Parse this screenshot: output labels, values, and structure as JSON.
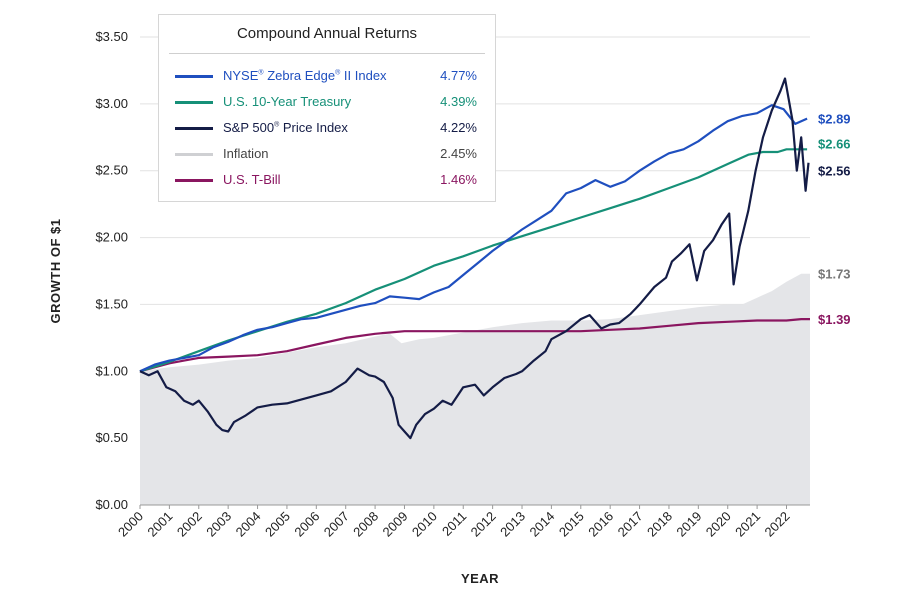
{
  "chart_data": {
    "type": "line",
    "ylabel": "GROWTH OF $1",
    "xlabel": "YEAR",
    "ylim": [
      0,
      3.5
    ],
    "xlim": [
      2000,
      2022.8
    ],
    "y_ticks": [
      "$0.00",
      "$0.50",
      "$1.00",
      "$1.50",
      "$2.00",
      "$2.50",
      "$3.00",
      "$3.50"
    ],
    "x_ticks": [
      "2000",
      "2001",
      "2002",
      "2003",
      "2004",
      "2005",
      "2006",
      "2007",
      "2008",
      "2009",
      "2010",
      "2011",
      "2012",
      "2013",
      "2014",
      "2015",
      "2016",
      "2017",
      "2018",
      "2019",
      "2020",
      "2021",
      "2022"
    ],
    "grid": "horizontal",
    "legend": {
      "title": "Compound Annual Returns",
      "placement": "top-left",
      "entries": [
        {
          "label_main": "NYSE",
          "label_sup1": "®",
          "label_mid": " Zebra Edge",
          "label_sup2": "®",
          "label_end": " II Index",
          "value": "4.77%",
          "color": "#1f4fbf"
        },
        {
          "label_main": "U.S. 10-Year Treasury",
          "value": "4.39%",
          "color": "#169078"
        },
        {
          "label_main": "S&P 500",
          "label_sup1": "®",
          "label_end": " Price Index",
          "value": "4.22%",
          "color": "#141c46"
        },
        {
          "label_main": "Inflation",
          "value": "2.45%",
          "color": "#cfd0d3"
        },
        {
          "label_main": "U.S. T-Bill",
          "value": "1.46%",
          "color": "#8a1660"
        }
      ]
    },
    "series": [
      {
        "name": "NYSE Zebra Edge II Index",
        "color": "#1f4fbf",
        "end_label": "$2.89",
        "points": [
          [
            2000.0,
            1.0
          ],
          [
            2000.5,
            1.05
          ],
          [
            2001.0,
            1.08
          ],
          [
            2001.5,
            1.1
          ],
          [
            2002.0,
            1.12
          ],
          [
            2002.5,
            1.18
          ],
          [
            2003.0,
            1.22
          ],
          [
            2003.5,
            1.27
          ],
          [
            2004.0,
            1.31
          ],
          [
            2004.5,
            1.33
          ],
          [
            2005.0,
            1.36
          ],
          [
            2005.5,
            1.39
          ],
          [
            2006.0,
            1.4
          ],
          [
            2006.5,
            1.43
          ],
          [
            2007.0,
            1.46
          ],
          [
            2007.5,
            1.49
          ],
          [
            2008.0,
            1.51
          ],
          [
            2008.5,
            1.56
          ],
          [
            2009.0,
            1.55
          ],
          [
            2009.5,
            1.54
          ],
          [
            2010.0,
            1.59
          ],
          [
            2010.5,
            1.63
          ],
          [
            2011.0,
            1.72
          ],
          [
            2011.5,
            1.81
          ],
          [
            2012.0,
            1.9
          ],
          [
            2012.5,
            1.98
          ],
          [
            2013.0,
            2.06
          ],
          [
            2013.5,
            2.13
          ],
          [
            2014.0,
            2.2
          ],
          [
            2014.5,
            2.33
          ],
          [
            2015.0,
            2.37
          ],
          [
            2015.5,
            2.43
          ],
          [
            2016.0,
            2.38
          ],
          [
            2016.5,
            2.42
          ],
          [
            2017.0,
            2.5
          ],
          [
            2017.5,
            2.57
          ],
          [
            2018.0,
            2.63
          ],
          [
            2018.5,
            2.66
          ],
          [
            2019.0,
            2.72
          ],
          [
            2019.5,
            2.8
          ],
          [
            2020.0,
            2.87
          ],
          [
            2020.5,
            2.91
          ],
          [
            2021.0,
            2.93
          ],
          [
            2021.5,
            2.99
          ],
          [
            2021.9,
            2.96
          ],
          [
            2022.3,
            2.85
          ],
          [
            2022.7,
            2.89
          ]
        ]
      },
      {
        "name": "U.S. 10-Year Treasury",
        "color": "#169078",
        "end_label": "$2.66",
        "points": [
          [
            2000.0,
            1.0
          ],
          [
            2001.0,
            1.07
          ],
          [
            2002.0,
            1.15
          ],
          [
            2003.0,
            1.23
          ],
          [
            2004.0,
            1.3
          ],
          [
            2005.0,
            1.37
          ],
          [
            2006.0,
            1.43
          ],
          [
            2007.0,
            1.51
          ],
          [
            2008.0,
            1.61
          ],
          [
            2009.0,
            1.69
          ],
          [
            2010.0,
            1.79
          ],
          [
            2011.0,
            1.86
          ],
          [
            2012.0,
            1.94
          ],
          [
            2013.0,
            2.01
          ],
          [
            2014.0,
            2.08
          ],
          [
            2015.0,
            2.15
          ],
          [
            2016.0,
            2.22
          ],
          [
            2017.0,
            2.29
          ],
          [
            2018.0,
            2.37
          ],
          [
            2019.0,
            2.45
          ],
          [
            2020.0,
            2.55
          ],
          [
            2020.7,
            2.62
          ],
          [
            2021.2,
            2.64
          ],
          [
            2021.7,
            2.64
          ],
          [
            2022.0,
            2.66
          ],
          [
            2022.7,
            2.66
          ]
        ]
      },
      {
        "name": "S&P 500 Price Index",
        "color": "#141c46",
        "end_label": "$2.56",
        "points": [
          [
            2000.0,
            1.0
          ],
          [
            2000.3,
            0.97
          ],
          [
            2000.6,
            1.0
          ],
          [
            2000.9,
            0.88
          ],
          [
            2001.2,
            0.85
          ],
          [
            2001.5,
            0.78
          ],
          [
            2001.8,
            0.75
          ],
          [
            2002.0,
            0.78
          ],
          [
            2002.3,
            0.7
          ],
          [
            2002.6,
            0.6
          ],
          [
            2002.8,
            0.56
          ],
          [
            2003.0,
            0.55
          ],
          [
            2003.2,
            0.62
          ],
          [
            2003.6,
            0.67
          ],
          [
            2004.0,
            0.73
          ],
          [
            2004.5,
            0.75
          ],
          [
            2005.0,
            0.76
          ],
          [
            2005.5,
            0.79
          ],
          [
            2006.0,
            0.82
          ],
          [
            2006.5,
            0.85
          ],
          [
            2007.0,
            0.92
          ],
          [
            2007.4,
            1.02
          ],
          [
            2007.8,
            0.97
          ],
          [
            2008.0,
            0.96
          ],
          [
            2008.3,
            0.92
          ],
          [
            2008.6,
            0.8
          ],
          [
            2008.8,
            0.6
          ],
          [
            2009.0,
            0.55
          ],
          [
            2009.2,
            0.5
          ],
          [
            2009.4,
            0.6
          ],
          [
            2009.7,
            0.68
          ],
          [
            2010.0,
            0.72
          ],
          [
            2010.3,
            0.78
          ],
          [
            2010.6,
            0.75
          ],
          [
            2011.0,
            0.88
          ],
          [
            2011.4,
            0.9
          ],
          [
            2011.7,
            0.82
          ],
          [
            2012.0,
            0.88
          ],
          [
            2012.4,
            0.95
          ],
          [
            2012.8,
            0.98
          ],
          [
            2013.0,
            1.0
          ],
          [
            2013.4,
            1.08
          ],
          [
            2013.8,
            1.15
          ],
          [
            2014.0,
            1.24
          ],
          [
            2014.5,
            1.3
          ],
          [
            2015.0,
            1.39
          ],
          [
            2015.3,
            1.42
          ],
          [
            2015.7,
            1.32
          ],
          [
            2016.0,
            1.35
          ],
          [
            2016.3,
            1.36
          ],
          [
            2016.7,
            1.43
          ],
          [
            2017.0,
            1.5
          ],
          [
            2017.5,
            1.63
          ],
          [
            2017.9,
            1.7
          ],
          [
            2018.1,
            1.82
          ],
          [
            2018.4,
            1.88
          ],
          [
            2018.7,
            1.95
          ],
          [
            2018.95,
            1.68
          ],
          [
            2019.2,
            1.9
          ],
          [
            2019.5,
            1.98
          ],
          [
            2019.8,
            2.1
          ],
          [
            2020.05,
            2.18
          ],
          [
            2020.2,
            1.65
          ],
          [
            2020.4,
            1.93
          ],
          [
            2020.7,
            2.2
          ],
          [
            2020.95,
            2.5
          ],
          [
            2021.2,
            2.75
          ],
          [
            2021.5,
            2.95
          ],
          [
            2021.8,
            3.1
          ],
          [
            2021.95,
            3.19
          ],
          [
            2022.2,
            2.88
          ],
          [
            2022.35,
            2.5
          ],
          [
            2022.5,
            2.75
          ],
          [
            2022.65,
            2.35
          ],
          [
            2022.75,
            2.56
          ]
        ]
      },
      {
        "name": "Inflation",
        "color": "#e4e5e8",
        "end_label": "$1.73",
        "fill": true,
        "points": [
          [
            2000.0,
            1.0
          ],
          [
            2001.0,
            1.03
          ],
          [
            2002.0,
            1.05
          ],
          [
            2003.0,
            1.08
          ],
          [
            2004.0,
            1.1
          ],
          [
            2005.0,
            1.14
          ],
          [
            2006.0,
            1.18
          ],
          [
            2007.0,
            1.21
          ],
          [
            2008.0,
            1.26
          ],
          [
            2008.5,
            1.28
          ],
          [
            2008.9,
            1.21
          ],
          [
            2009.5,
            1.24
          ],
          [
            2010.0,
            1.25
          ],
          [
            2011.0,
            1.29
          ],
          [
            2012.0,
            1.33
          ],
          [
            2013.0,
            1.36
          ],
          [
            2014.0,
            1.38
          ],
          [
            2015.0,
            1.38
          ],
          [
            2016.0,
            1.39
          ],
          [
            2017.0,
            1.42
          ],
          [
            2018.0,
            1.45
          ],
          [
            2019.0,
            1.48
          ],
          [
            2020.0,
            1.5
          ],
          [
            2020.5,
            1.5
          ],
          [
            2021.0,
            1.55
          ],
          [
            2021.5,
            1.6
          ],
          [
            2022.0,
            1.67
          ],
          [
            2022.5,
            1.73
          ],
          [
            2022.8,
            1.73
          ]
        ]
      },
      {
        "name": "U.S. T-Bill",
        "color": "#8a1660",
        "end_label": "$1.39",
        "points": [
          [
            2000.0,
            1.0
          ],
          [
            2000.5,
            1.03
          ],
          [
            2001.0,
            1.06
          ],
          [
            2001.5,
            1.08
          ],
          [
            2002.0,
            1.1
          ],
          [
            2003.0,
            1.11
          ],
          [
            2004.0,
            1.12
          ],
          [
            2005.0,
            1.15
          ],
          [
            2006.0,
            1.2
          ],
          [
            2007.0,
            1.25
          ],
          [
            2008.0,
            1.28
          ],
          [
            2008.5,
            1.29
          ],
          [
            2009.0,
            1.3
          ],
          [
            2012.0,
            1.3
          ],
          [
            2015.0,
            1.3
          ],
          [
            2016.0,
            1.31
          ],
          [
            2017.0,
            1.32
          ],
          [
            2018.0,
            1.34
          ],
          [
            2019.0,
            1.36
          ],
          [
            2020.0,
            1.37
          ],
          [
            2021.0,
            1.38
          ],
          [
            2022.0,
            1.38
          ],
          [
            2022.5,
            1.39
          ],
          [
            2022.8,
            1.39
          ]
        ]
      }
    ]
  }
}
